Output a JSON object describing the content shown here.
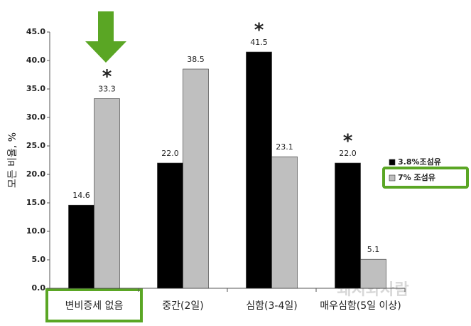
{
  "chart_data": {
    "type": "bar",
    "y_label": "모든 비율, %",
    "categories": [
      "변비증세 없음",
      "중간(2일)",
      "심함(3-4일)",
      "매우심함(5일 이상)"
    ],
    "series": [
      {
        "name": "3.8%조섬유",
        "color": "#000000",
        "values": [
          14.6,
          22.0,
          41.5,
          22.0
        ],
        "value_labels": [
          "14.6",
          "22.0",
          "41.5",
          "22.0"
        ]
      },
      {
        "name": "7% 조섬유",
        "color": "#bfbfbf",
        "values": [
          33.3,
          38.5,
          23.1,
          5.1
        ],
        "value_labels": [
          "33.3",
          "38.5",
          "23.1",
          "5.1"
        ]
      }
    ],
    "annotations": [
      {
        "text": "*",
        "series": "7% 조섬유",
        "category": "변비증세 없음"
      },
      {
        "text": "*",
        "series": "3.8%조섬유",
        "category": "심함(3-4일)"
      },
      {
        "text": "*",
        "series": "3.8%조섬유",
        "category": "매우심함(5일 이상)"
      }
    ],
    "watermark": "돼지와사람",
    "ylim": [
      0,
      45
    ],
    "yticks": [
      {
        "value": 0,
        "label": "0.0"
      },
      {
        "value": 5,
        "label": "5.0"
      },
      {
        "value": 10,
        "label": "10.0"
      },
      {
        "value": 15,
        "label": "15.0"
      },
      {
        "value": 20,
        "label": "20.0"
      },
      {
        "value": 25,
        "label": "25.0"
      },
      {
        "value": 30,
        "label": "30.0"
      },
      {
        "value": 35,
        "label": "35.0"
      },
      {
        "value": 40,
        "label": "40.0"
      },
      {
        "value": 45,
        "label": "45.0"
      }
    ],
    "grid": false
  }
}
